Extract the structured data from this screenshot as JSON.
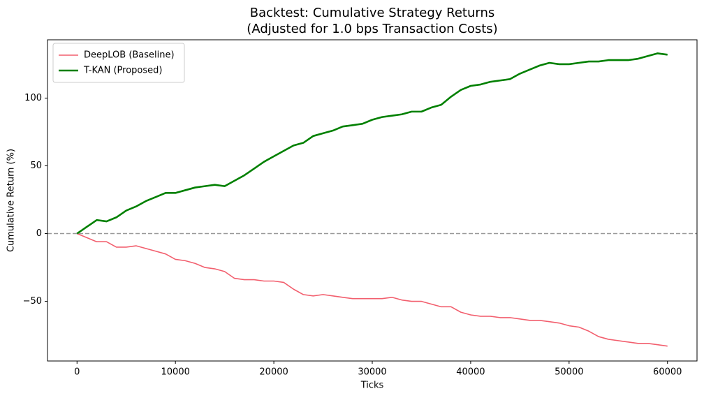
{
  "chart_data": {
    "type": "line",
    "title": [
      "Backtest: Cumulative Strategy Returns",
      "(Adjusted for 1.0 bps Transaction Costs)"
    ],
    "x_label": "Ticks",
    "y_label": "Cumulative Return (%)",
    "x": [
      0,
      1000,
      2000,
      3000,
      4000,
      5000,
      6000,
      7000,
      8000,
      9000,
      10000,
      11000,
      12000,
      13000,
      14000,
      15000,
      16000,
      17000,
      18000,
      19000,
      20000,
      21000,
      22000,
      23000,
      24000,
      25000,
      26000,
      27000,
      28000,
      29000,
      30000,
      31000,
      32000,
      33000,
      34000,
      35000,
      36000,
      37000,
      38000,
      39000,
      40000,
      41000,
      42000,
      43000,
      44000,
      45000,
      46000,
      47000,
      48000,
      49000,
      50000,
      51000,
      52000,
      53000,
      54000,
      55000,
      56000,
      57000,
      58000,
      59000,
      60000
    ],
    "series": [
      {
        "name": "DeepLOB (Baseline)",
        "color": "#f25f6e",
        "width": 1.6,
        "values": [
          0,
          -3,
          -6,
          -6,
          -10,
          -10,
          -9,
          -11,
          -13,
          -15,
          -19,
          -20,
          -22,
          -25,
          -26,
          -28,
          -33,
          -34,
          -34,
          -35,
          -35,
          -36,
          -41,
          -45,
          -46,
          -45,
          -46,
          -47,
          -48,
          -48,
          -48,
          -48,
          -47,
          -49,
          -50,
          -50,
          -52,
          -54,
          -54,
          -58,
          -60,
          -61,
          -61,
          -62,
          -62,
          -63,
          -64,
          -64,
          -65,
          -66,
          -68,
          -69,
          -72,
          -76,
          -78,
          -79,
          -80,
          -81,
          -81,
          -82,
          -83
        ]
      },
      {
        "name": "T-KAN (Proposed)",
        "color": "#008000",
        "width": 2.6,
        "values": [
          0,
          5,
          10,
          9,
          12,
          17,
          20,
          24,
          27,
          30,
          30,
          32,
          34,
          35,
          36,
          35,
          39,
          43,
          48,
          53,
          57,
          61,
          65,
          67,
          72,
          74,
          76,
          79,
          80,
          81,
          84,
          86,
          87,
          88,
          90,
          90,
          93,
          95,
          101,
          106,
          109,
          110,
          112,
          113,
          114,
          118,
          121,
          124,
          126,
          125,
          125,
          126,
          127,
          127,
          128,
          128,
          128,
          129,
          131,
          133,
          132
        ]
      }
    ],
    "hlines": [
      {
        "value": 0,
        "color": "#999999"
      }
    ],
    "xlim": [
      -3000,
      63000
    ],
    "ylim": [
      -94,
      143
    ],
    "xticks": [
      0,
      10000,
      20000,
      30000,
      40000,
      50000,
      60000
    ],
    "yticks": [
      {
        "value": -50,
        "label": "−50"
      },
      0,
      50,
      100
    ],
    "grid": false,
    "legend": "upper left"
  }
}
